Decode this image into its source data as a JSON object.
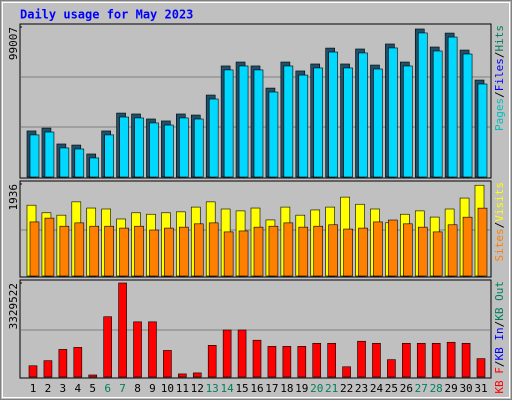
{
  "chart_data": [
    {
      "type": "bar",
      "title": "Daily usage for May 2023",
      "ylim": [
        0,
        99007
      ],
      "yticks": [
        99007
      ],
      "legend": [
        {
          "name": "Pages",
          "color": "#00c0c0"
        },
        {
          "name": "Files",
          "color": "#0000ff"
        },
        {
          "name": "Hits",
          "color": "#00805c"
        }
      ],
      "series": [
        {
          "name": "Hits",
          "color": "#20506a",
          "values": [
            30400,
            32300,
            21800,
            21100,
            15200,
            30400,
            42200,
            41600,
            38300,
            37000,
            41600,
            40900,
            54100,
            73300,
            75900,
            73300,
            58700,
            75900,
            70000,
            74600,
            85100,
            74600,
            84500,
            73900,
            87800,
            75900,
            97700,
            85800,
            95000,
            83800,
            64000
          ]
        },
        {
          "name": "Files",
          "color": "#00d8ff",
          "values": [
            29100,
            31000,
            20500,
            19800,
            13900,
            29100,
            40900,
            40300,
            37000,
            35600,
            40300,
            39600,
            52800,
            72000,
            74600,
            72000,
            57400,
            74600,
            68600,
            73300,
            83800,
            73300,
            83200,
            72600,
            86500,
            74600,
            96400,
            84500,
            93700,
            82500,
            62700
          ]
        }
      ]
    },
    {
      "type": "bar",
      "ylim": [
        0,
        1936
      ],
      "yticks": [
        1936
      ],
      "legend": [
        {
          "name": "Sites",
          "color": "#ff8000"
        },
        {
          "name": "Visits",
          "color": "#ffff00"
        }
      ],
      "series": [
        {
          "name": "Visits",
          "color": "#ffff00",
          "values": [
            1490,
            1330,
            1280,
            1560,
            1430,
            1410,
            1200,
            1330,
            1300,
            1330,
            1350,
            1450,
            1560,
            1410,
            1370,
            1430,
            1180,
            1450,
            1280,
            1390,
            1450,
            1660,
            1510,
            1410,
            1120,
            1300,
            1370,
            1240,
            1410,
            1640,
            1910
          ]
        },
        {
          "name": "Sites",
          "color": "#ff8000",
          "values": [
            1180,
            1260,
            1090,
            1160,
            1090,
            1090,
            1050,
            1090,
            1010,
            1050,
            1070,
            1140,
            1160,
            970,
            990,
            1070,
            1090,
            1160,
            1070,
            1090,
            1120,
            1030,
            1050,
            1180,
            1220,
            1140,
            1070,
            970,
            1120,
            1280,
            1470
          ]
        }
      ]
    },
    {
      "type": "bar",
      "ylim": [
        0,
        3329522
      ],
      "yticks": [
        3329522
      ],
      "legend": [
        {
          "name": "KB F",
          "color": "#ff0000"
        },
        {
          "name": "KB In",
          "color": "#0000ff"
        },
        {
          "name": "KB Out",
          "color": "#00805c"
        }
      ],
      "categories": [
        "1",
        "2",
        "3",
        "4",
        "5",
        "6",
        "7",
        "8",
        "9",
        "10",
        "11",
        "12",
        "13",
        "14",
        "15",
        "16",
        "17",
        "18",
        "19",
        "20",
        "21",
        "22",
        "23",
        "24",
        "25",
        "26",
        "27",
        "28",
        "29",
        "30",
        "31"
      ],
      "category_colors": [
        "#000000",
        "#000000",
        "#000000",
        "#000000",
        "#000000",
        "#00805c",
        "#00805c",
        "#000000",
        "#000000",
        "#000000",
        "#000000",
        "#000000",
        "#00805c",
        "#00805c",
        "#000000",
        "#000000",
        "#000000",
        "#000000",
        "#000000",
        "#00805c",
        "#00805c",
        "#000000",
        "#000000",
        "#000000",
        "#000000",
        "#000000",
        "#00805c",
        "#00805c",
        "#000000",
        "#000000",
        "#000000"
      ],
      "series": [
        {
          "name": "KB F",
          "color": "#ff0000",
          "values": [
            398000,
            579000,
            977000,
            1049000,
            72000,
            2135000,
            3330000,
            1954000,
            1954000,
            941000,
            109000,
            145000,
            1122000,
            1665000,
            1665000,
            1303000,
            1086000,
            1086000,
            1086000,
            1194000,
            1194000,
            362000,
            1267000,
            1194000,
            615000,
            1194000,
            1194000,
            1194000,
            1231000,
            1194000,
            651000
          ]
        }
      ]
    }
  ]
}
